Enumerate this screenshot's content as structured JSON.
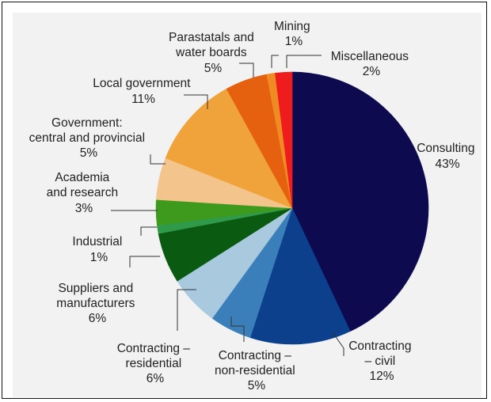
{
  "chart_data": {
    "type": "pie",
    "title": "",
    "start": "top, clockwise",
    "slices": [
      {
        "name": "Consulting",
        "value": 43,
        "label": "43%",
        "color": "#0d0a4f"
      },
      {
        "name": "Contracting – civil",
        "value": 12,
        "label": "12%",
        "color": "#0c3f8c"
      },
      {
        "name": "Contracting – non-residential",
        "value": 5,
        "label": "5%",
        "color": "#3a7fba"
      },
      {
        "name": "Contracting – residential",
        "value": 6,
        "label": "6%",
        "color": "#a9c9de"
      },
      {
        "name": "Suppliers and manufacturers",
        "value": 6,
        "label": "6%",
        "color": "#0a5a12"
      },
      {
        "name": "Industrial",
        "value": 1,
        "label": "1%",
        "color": "#2f9a4a"
      },
      {
        "name": "Academia and research",
        "value": 3,
        "label": "3%",
        "color": "#3e9a1c"
      },
      {
        "name": "Government: central and provincial",
        "value": 5,
        "label": "5%",
        "color": "#f3c58d"
      },
      {
        "name": "Local government",
        "value": 11,
        "label": "11%",
        "color": "#f0a33a"
      },
      {
        "name": "Parastatals and water boards",
        "value": 5,
        "label": "5%",
        "color": "#e5600f"
      },
      {
        "name": "Mining",
        "value": 1,
        "label": "1%",
        "color": "#f08a23"
      },
      {
        "name": "Miscellaneous",
        "value": 2,
        "label": "2%",
        "color": "#ee1c1c"
      }
    ]
  },
  "labels": {
    "consulting": [
      "Consulting",
      "43%"
    ],
    "civil": [
      "Contracting",
      "– civil",
      "12%"
    ],
    "nonres": [
      "Contracting –",
      "non-residential",
      "5%"
    ],
    "res": [
      "Contracting –",
      "residential",
      "6%"
    ],
    "suppliers": [
      "Suppliers and",
      "manufacturers",
      "6%"
    ],
    "industrial": [
      "Industrial",
      "1%"
    ],
    "academia": [
      "Academia",
      "and research",
      "3%"
    ],
    "government": [
      "Government:",
      "central and provincial",
      "5%"
    ],
    "local": [
      "Local government",
      "11%"
    ],
    "parastatals": [
      "Parastatals and",
      "water boards",
      "5%"
    ],
    "mining": [
      "Mining",
      "1%"
    ],
    "misc": [
      "Miscellaneous",
      "2%"
    ]
  }
}
